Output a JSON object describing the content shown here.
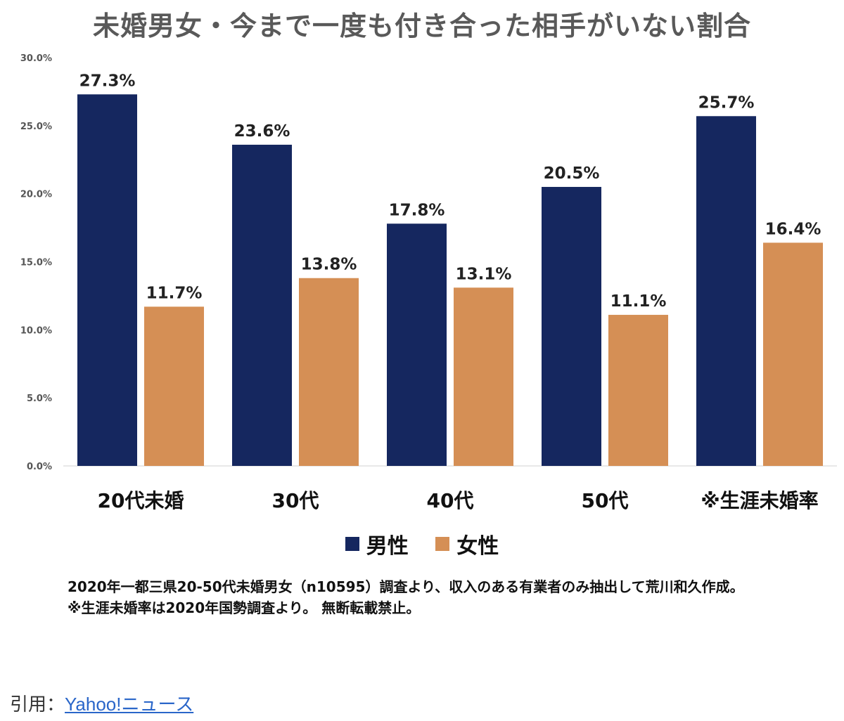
{
  "chart_data": {
    "type": "bar",
    "title": "未婚男女・今まで一度も付き合った相手がいない割合",
    "categories": [
      "20代未婚",
      "30代",
      "40代",
      "50代",
      "※生涯未婚率"
    ],
    "series": [
      {
        "name": "男性",
        "color": "#15275f",
        "values": [
          27.3,
          23.6,
          17.8,
          20.5,
          25.7
        ],
        "labels": [
          "27.3%",
          "23.6%",
          "17.8%",
          "20.5%",
          "25.7%"
        ]
      },
      {
        "name": "女性",
        "color": "#d58f55",
        "values": [
          11.7,
          13.8,
          13.1,
          11.1,
          16.4
        ],
        "labels": [
          "11.7%",
          "13.8%",
          "13.1%",
          "11.1%",
          "16.4%"
        ]
      }
    ],
    "ylim": [
      0,
      30
    ],
    "yticks": [
      0,
      5,
      10,
      15,
      20,
      25,
      30
    ],
    "ytick_labels": [
      "0.0%",
      "5.0%",
      "10.0%",
      "15.0%",
      "20.0%",
      "25.0%",
      "30.0%"
    ],
    "grid": false,
    "legend_position": "bottom-center"
  },
  "legend": {
    "male": "男性",
    "female": "女性"
  },
  "note": {
    "line1": "2020年一都三県20-50代未婚男女（n10595）調査より、収入のある有業者のみ抽出して荒川和久作成。",
    "line2": "※生涯未婚率は2020年国勢調査より。 無断転載禁止。"
  },
  "citation": {
    "prefix": "引用：",
    "link_text": "Yahoo!ニュース"
  }
}
